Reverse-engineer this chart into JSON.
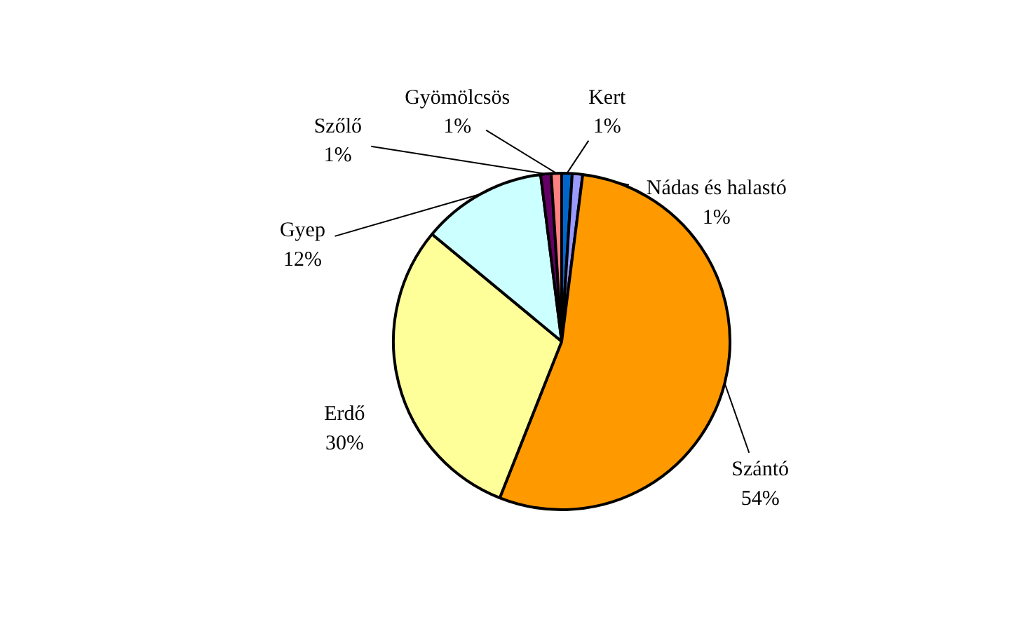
{
  "chart_data": {
    "type": "pie",
    "categories": [
      "Kert",
      "Nádas és halastó",
      "Szántó",
      "Erdő",
      "Gyep",
      "Szőlő",
      "Gyömölcsös"
    ],
    "values": [
      1,
      1,
      54,
      30,
      12,
      1,
      1
    ],
    "value_labels": [
      "1%",
      "1%",
      "54%",
      "30%",
      "12%",
      "1%",
      "1%"
    ],
    "colors": [
      "#0066cc",
      "#9999ff",
      "#ff9900",
      "#ffff99",
      "#ccffff",
      "#660066",
      "#ff8080"
    ]
  }
}
